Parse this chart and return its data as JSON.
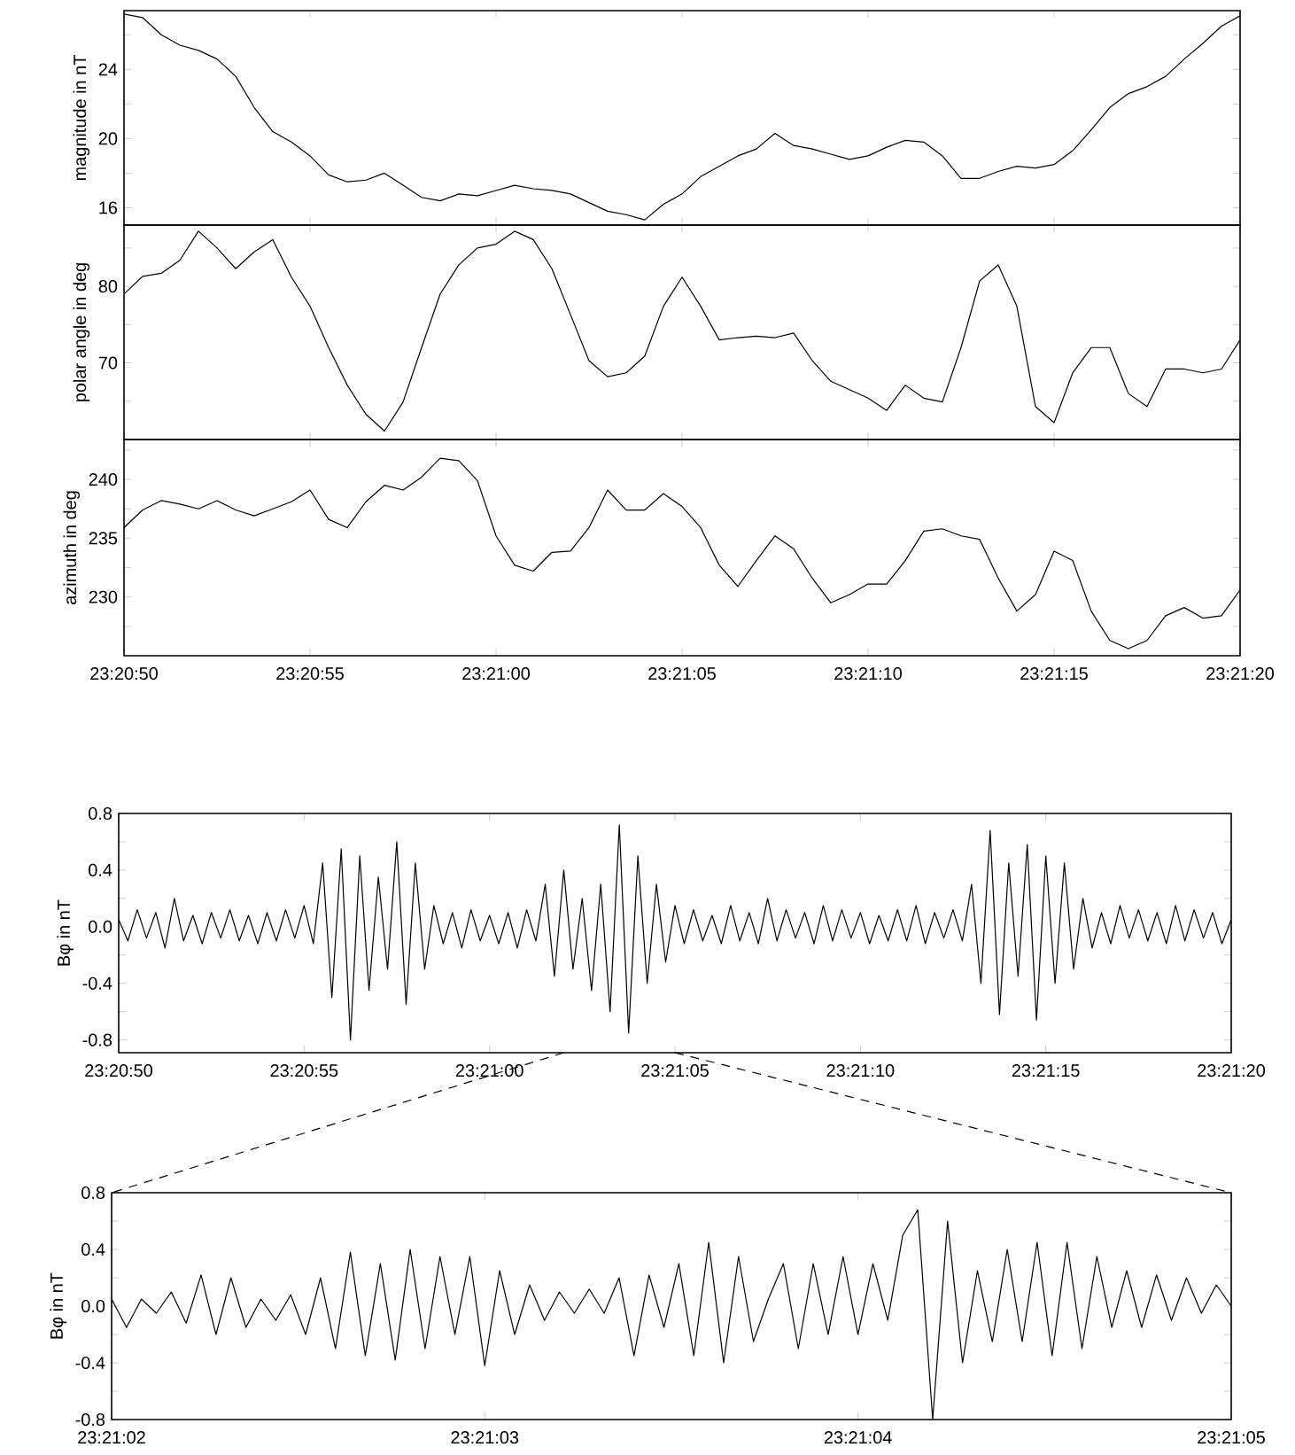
{
  "chart_data": [
    {
      "type": "line",
      "ylabel": "magnitude in nT",
      "color": "#000000",
      "tick_labels": "y",
      "xlim": [
        23.347222,
        23.355556
      ],
      "ylim": [
        15,
        27.4
      ],
      "xticks": [
        {
          "value": 23.347222,
          "label": null
        },
        {
          "value": 23.348611,
          "label": null
        },
        {
          "value": 23.35,
          "label": null
        },
        {
          "value": 23.351389,
          "label": null
        },
        {
          "value": 23.352778,
          "label": null
        },
        {
          "value": 23.354167,
          "label": null
        },
        {
          "value": 23.355556,
          "label": null
        }
      ],
      "yticks": [
        16,
        {
          "value": 18,
          "label": null
        },
        20,
        {
          "value": 22,
          "label": null
        },
        24,
        {
          "value": 26,
          "label": null
        }
      ],
      "x": [
        23.347222,
        23.347361,
        23.3475,
        23.347639,
        23.347778,
        23.347917,
        23.348056,
        23.348194,
        23.348333,
        23.348472,
        23.348611,
        23.34875,
        23.348889,
        23.349028,
        23.349167,
        23.349306,
        23.349444,
        23.349583,
        23.349722,
        23.349861,
        23.35,
        23.350139,
        23.350278,
        23.350417,
        23.350556,
        23.350694,
        23.350833,
        23.350972,
        23.351111,
        23.35125,
        23.351389,
        23.351528,
        23.351667,
        23.351806,
        23.351944,
        23.352083,
        23.352222,
        23.352361,
        23.3525,
        23.352639,
        23.352778,
        23.352917,
        23.353056,
        23.353194,
        23.353333,
        23.353472,
        23.353611,
        23.35375,
        23.353889,
        23.354028,
        23.354167,
        23.354306,
        23.354444,
        23.354583,
        23.354722,
        23.354861,
        23.355,
        23.355139,
        23.355278,
        23.355417,
        23.355556
      ],
      "values": [
        27.2,
        27.0,
        26.0,
        25.4,
        25.1,
        24.6,
        23.6,
        21.8,
        20.4,
        19.8,
        19.0,
        17.9,
        17.5,
        17.6,
        18.0,
        17.3,
        16.6,
        16.4,
        16.8,
        16.7,
        17.0,
        17.3,
        17.1,
        17.0,
        16.8,
        16.3,
        15.8,
        15.6,
        15.3,
        16.2,
        16.8,
        17.8,
        18.4,
        19.0,
        19.4,
        20.3,
        19.6,
        19.4,
        19.1,
        18.8,
        19.0,
        19.5,
        19.9,
        19.8,
        19.0,
        17.7,
        17.7,
        18.1,
        18.4,
        18.3,
        18.5,
        19.3,
        20.5,
        21.8,
        22.6,
        23.0,
        23.6,
        24.6,
        25.5,
        26.5,
        27.1
      ]
    },
    {
      "type": "line",
      "ylabel": "polar angle in deg",
      "color": "#000000",
      "tick_labels": "y",
      "xlim": [
        23.347222,
        23.355556
      ],
      "ylim": [
        60,
        88
      ],
      "xticks": [
        {
          "value": 23.347222,
          "label": null
        },
        {
          "value": 23.348611,
          "label": null
        },
        {
          "value": 23.35,
          "label": null
        },
        {
          "value": 23.351389,
          "label": null
        },
        {
          "value": 23.352778,
          "label": null
        },
        {
          "value": 23.354167,
          "label": null
        },
        {
          "value": 23.355556,
          "label": null
        }
      ],
      "yticks": [
        {
          "value": 65,
          "label": null
        },
        70,
        {
          "value": 75,
          "label": null
        },
        80,
        {
          "value": 85,
          "label": null
        }
      ],
      "x": [
        23.347222,
        23.347361,
        23.3475,
        23.347639,
        23.347778,
        23.347917,
        23.348056,
        23.348194,
        23.348333,
        23.348472,
        23.348611,
        23.34875,
        23.348889,
        23.349028,
        23.349167,
        23.349306,
        23.349444,
        23.349583,
        23.349722,
        23.349861,
        23.35,
        23.350139,
        23.350278,
        23.350417,
        23.350556,
        23.350694,
        23.350833,
        23.350972,
        23.351111,
        23.35125,
        23.351389,
        23.351528,
        23.351667,
        23.351806,
        23.351944,
        23.352083,
        23.352222,
        23.352361,
        23.3525,
        23.352639,
        23.352778,
        23.352917,
        23.353056,
        23.353194,
        23.353333,
        23.353472,
        23.353611,
        23.35375,
        23.353889,
        23.354028,
        23.354167,
        23.354306,
        23.354444,
        23.354583,
        23.354722,
        23.354861,
        23.355,
        23.355139,
        23.355278,
        23.355417,
        23.355556
      ],
      "values": [
        79.0,
        81.3,
        81.7,
        83.4,
        87.2,
        85.0,
        82.3,
        84.5,
        86.1,
        81.2,
        77.4,
        72.0,
        67.1,
        63.3,
        61.1,
        64.9,
        72.0,
        79.0,
        82.8,
        85.0,
        85.5,
        87.2,
        86.1,
        82.3,
        76.3,
        70.3,
        68.2,
        68.7,
        70.9,
        77.4,
        81.2,
        77.4,
        73.0,
        73.3,
        73.5,
        73.3,
        73.9,
        70.3,
        67.6,
        66.5,
        65.4,
        63.8,
        67.1,
        65.4,
        64.9,
        72.0,
        80.7,
        82.8,
        77.4,
        64.3,
        62.2,
        68.7,
        72.0,
        72.0,
        66.0,
        64.3,
        69.2,
        69.2,
        68.7,
        69.2,
        73.0
      ]
    },
    {
      "type": "line",
      "ylabel": "azimuth in deg",
      "color": "#000000",
      "xlim": [
        23.347222,
        23.355556
      ],
      "ylim": [
        225,
        243.4
      ],
      "xticks": [
        {
          "value": 23.347222,
          "label": "23:20:50"
        },
        {
          "value": 23.348611,
          "label": "23:20:55"
        },
        {
          "value": 23.35,
          "label": "23:21:00"
        },
        {
          "value": 23.351389,
          "label": "23:21:05"
        },
        {
          "value": 23.352778,
          "label": "23:21:10"
        },
        {
          "value": 23.354167,
          "label": "23:21:15"
        },
        {
          "value": 23.355556,
          "label": "23:21:20"
        }
      ],
      "yticks": [
        {
          "value": 227.5,
          "label": null
        },
        230,
        {
          "value": 232.5,
          "label": null
        },
        235,
        {
          "value": 237.5,
          "label": null
        },
        240,
        {
          "value": 242.5,
          "label": null
        }
      ],
      "x": [
        23.347222,
        23.347361,
        23.3475,
        23.347639,
        23.347778,
        23.347917,
        23.348056,
        23.348194,
        23.348333,
        23.348472,
        23.348611,
        23.34875,
        23.348889,
        23.349028,
        23.349167,
        23.349306,
        23.349444,
        23.349583,
        23.349722,
        23.349861,
        23.35,
        23.350139,
        23.350278,
        23.350417,
        23.350556,
        23.350694,
        23.350833,
        23.350972,
        23.351111,
        23.35125,
        23.351389,
        23.351528,
        23.351667,
        23.351806,
        23.351944,
        23.352083,
        23.352222,
        23.352361,
        23.3525,
        23.352639,
        23.352778,
        23.352917,
        23.353056,
        23.353194,
        23.353333,
        23.353472,
        23.353611,
        23.35375,
        23.353889,
        23.354028,
        23.354167,
        23.354306,
        23.354444,
        23.354583,
        23.354722,
        23.354861,
        23.355,
        23.355139,
        23.355278,
        23.355417,
        23.355556
      ],
      "values": [
        235.9,
        237.4,
        238.2,
        237.9,
        237.5,
        238.2,
        237.4,
        236.9,
        237.5,
        238.1,
        239.1,
        236.6,
        235.9,
        238.1,
        239.5,
        239.1,
        240.2,
        241.8,
        241.6,
        239.9,
        235.2,
        232.7,
        232.2,
        233.8,
        233.9,
        235.9,
        239.1,
        237.4,
        237.4,
        238.8,
        237.7,
        235.9,
        232.7,
        230.9,
        233.1,
        235.2,
        234.1,
        231.6,
        229.5,
        230.2,
        231.1,
        231.1,
        233.1,
        235.6,
        235.8,
        235.2,
        234.9,
        231.6,
        228.8,
        230.2,
        233.9,
        233.1,
        228.8,
        226.3,
        225.6,
        226.3,
        228.4,
        229.1,
        228.2,
        228.4,
        230.6
      ]
    },
    {
      "type": "line",
      "ylabel": "Bφ in nT",
      "color": "#000000",
      "xlim": [
        23.347222,
        23.355556
      ],
      "ylim": [
        -0.89,
        0.8
      ],
      "xticks": [
        {
          "value": 23.347222,
          "label": "23:20:50"
        },
        {
          "value": 23.348611,
          "label": "23:20:55"
        },
        {
          "value": 23.35,
          "label": "23:21:00"
        },
        {
          "value": 23.351389,
          "label": "23:21:05"
        },
        {
          "value": 23.352778,
          "label": "23:21:10"
        },
        {
          "value": 23.354167,
          "label": "23:21:15"
        },
        {
          "value": 23.355556,
          "label": "23:21:20"
        }
      ],
      "yticks": [
        -0.8,
        {
          "value": -0.6,
          "label": null
        },
        -0.4,
        {
          "value": -0.2,
          "label": null
        },
        {
          "value": 0,
          "label": "0.0"
        },
        {
          "value": 0.2,
          "label": null
        },
        0.4,
        {
          "value": 0.6,
          "label": null
        },
        0.8
      ],
      "x": [
        23.347222,
        23.347291,
        23.347361,
        23.34743,
        23.3475,
        23.347569,
        23.347639,
        23.347708,
        23.347778,
        23.347847,
        23.347916,
        23.347986,
        23.348055,
        23.348125,
        23.348194,
        23.348264,
        23.348333,
        23.348403,
        23.348472,
        23.348541,
        23.348611,
        23.34868,
        23.34875,
        23.348819,
        23.348889,
        23.348958,
        23.349028,
        23.349097,
        23.349167,
        23.349236,
        23.349305,
        23.349375,
        23.349444,
        23.349514,
        23.349583,
        23.349653,
        23.349722,
        23.349792,
        23.349861,
        23.34993,
        23.35,
        23.350069,
        23.350139,
        23.350208,
        23.350278,
        23.350347,
        23.350417,
        23.350486,
        23.350556,
        23.350625,
        23.350694,
        23.350764,
        23.350833,
        23.350903,
        23.350972,
        23.351042,
        23.351111,
        23.351181,
        23.35125,
        23.351319,
        23.351389,
        23.351458,
        23.351528,
        23.351597,
        23.351667,
        23.351736,
        23.351806,
        23.351875,
        23.351945,
        23.352014,
        23.352083,
        23.352153,
        23.352222,
        23.352292,
        23.352361,
        23.352431,
        23.3525,
        23.35257,
        23.352639,
        23.352708,
        23.352778,
        23.352847,
        23.352917,
        23.352986,
        23.353056,
        23.353125,
        23.353195,
        23.353264,
        23.353334,
        23.353403,
        23.353472,
        23.353542,
        23.353611,
        23.353681,
        23.35375,
        23.35382,
        23.353889,
        23.353959,
        23.354028,
        23.354097,
        23.354167,
        23.354236,
        23.354306,
        23.354375,
        23.354445,
        23.354514,
        23.354584,
        23.354653,
        23.354723,
        23.354792,
        23.354861,
        23.354931,
        23.355,
        23.35507,
        23.355139,
        23.355209,
        23.355278,
        23.355348,
        23.355417,
        23.355486,
        23.355556
      ],
      "values": [
        0.05,
        -0.1,
        0.12,
        -0.08,
        0.1,
        -0.15,
        0.2,
        -0.1,
        0.08,
        -0.12,
        0.1,
        -0.08,
        0.12,
        -0.1,
        0.08,
        -0.12,
        0.1,
        -0.1,
        0.12,
        -0.08,
        0.15,
        -0.12,
        0.45,
        -0.5,
        0.55,
        -0.8,
        0.5,
        -0.45,
        0.35,
        -0.3,
        0.6,
        -0.55,
        0.45,
        -0.3,
        0.15,
        -0.12,
        0.1,
        -0.15,
        0.12,
        -0.1,
        0.08,
        -0.12,
        0.1,
        -0.15,
        0.12,
        -0.1,
        0.3,
        -0.35,
        0.4,
        -0.3,
        0.2,
        -0.45,
        0.3,
        -0.6,
        0.72,
        -0.75,
        0.5,
        -0.4,
        0.3,
        -0.25,
        0.15,
        -0.12,
        0.12,
        -0.1,
        0.08,
        -0.12,
        0.15,
        -0.1,
        0.1,
        -0.12,
        0.2,
        -0.1,
        0.12,
        -0.08,
        0.1,
        -0.12,
        0.15,
        -0.1,
        0.12,
        -0.08,
        0.1,
        -0.12,
        0.08,
        -0.1,
        0.12,
        -0.1,
        0.15,
        -0.12,
        0.1,
        -0.08,
        0.12,
        -0.1,
        0.3,
        -0.4,
        0.68,
        -0.62,
        0.45,
        -0.35,
        0.58,
        -0.66,
        0.5,
        -0.4,
        0.45,
        -0.3,
        0.2,
        -0.15,
        0.1,
        -0.12,
        0.15,
        -0.08,
        0.12,
        -0.1,
        0.1,
        -0.12,
        0.15,
        -0.1,
        0.12,
        -0.08,
        0.1,
        -0.12,
        0.05
      ]
    },
    {
      "type": "line",
      "ylabel": "Bφ in nT",
      "color": "#000000",
      "xlim": [
        23.3505556,
        23.3513889
      ],
      "ylim": [
        -0.8,
        0.8
      ],
      "xticks": [
        {
          "value": 23.3505556,
          "label": "23:21:02"
        },
        {
          "value": 23.3508333,
          "label": "23:21:03"
        },
        {
          "value": 23.3511111,
          "label": "23:21:04"
        },
        {
          "value": 23.3513889,
          "label": "23:21:05"
        }
      ],
      "yticks": [
        -0.8,
        {
          "value": -0.6,
          "label": null
        },
        -0.4,
        {
          "value": -0.2,
          "label": null
        },
        {
          "value": 0,
          "label": "0.0"
        },
        {
          "value": 0.2,
          "label": null
        },
        0.4,
        {
          "value": 0.6,
          "label": null
        },
        0.8
      ],
      "x": [
        23.3505556,
        23.3505667,
        23.3505778,
        23.3505889,
        23.3506,
        23.3506111,
        23.3506222,
        23.3506333,
        23.3506444,
        23.3506556,
        23.3506667,
        23.3506778,
        23.3506889,
        23.3507,
        23.3507111,
        23.3507222,
        23.3507333,
        23.3507444,
        23.3507556,
        23.3507667,
        23.3507778,
        23.3507889,
        23.3508,
        23.3508111,
        23.3508222,
        23.3508333,
        23.3508444,
        23.3508556,
        23.3508667,
        23.3508778,
        23.3508889,
        23.3509,
        23.3509111,
        23.3509222,
        23.3509333,
        23.3509444,
        23.3509556,
        23.3509667,
        23.3509778,
        23.3509889,
        23.351,
        23.3510111,
        23.3510222,
        23.3510333,
        23.3510444,
        23.3510556,
        23.3510667,
        23.3510778,
        23.3510889,
        23.3511,
        23.3511111,
        23.3511222,
        23.3511333,
        23.3511444,
        23.3511556,
        23.3511667,
        23.3511778,
        23.3511889,
        23.3512,
        23.3512111,
        23.3512222,
        23.3512333,
        23.3512444,
        23.3512556,
        23.3512667,
        23.3512778,
        23.3512889,
        23.3513,
        23.3513111,
        23.3513222,
        23.3513333,
        23.3513444,
        23.3513556,
        23.3513667,
        23.3513778,
        23.3513889
      ],
      "values": [
        0.05,
        -0.15,
        0.05,
        -0.05,
        0.1,
        -0.12,
        0.22,
        -0.2,
        0.2,
        -0.15,
        0.05,
        -0.1,
        0.08,
        -0.2,
        0.2,
        -0.3,
        0.38,
        -0.35,
        0.3,
        -0.38,
        0.4,
        -0.3,
        0.35,
        -0.2,
        0.35,
        -0.42,
        0.25,
        -0.2,
        0.15,
        -0.1,
        0.1,
        -0.05,
        0.12,
        -0.05,
        0.2,
        -0.35,
        0.22,
        -0.15,
        0.3,
        -0.35,
        0.45,
        -0.4,
        0.35,
        -0.25,
        0.05,
        0.3,
        -0.3,
        0.3,
        -0.2,
        0.35,
        -0.2,
        0.3,
        -0.1,
        0.5,
        0.68,
        -0.8,
        0.6,
        -0.4,
        0.25,
        -0.25,
        0.4,
        -0.25,
        0.45,
        -0.35,
        0.45,
        -0.3,
        0.35,
        -0.15,
        0.25,
        -0.15,
        0.22,
        -0.1,
        0.2,
        -0.05,
        0.15,
        0.0
      ]
    }
  ]
}
